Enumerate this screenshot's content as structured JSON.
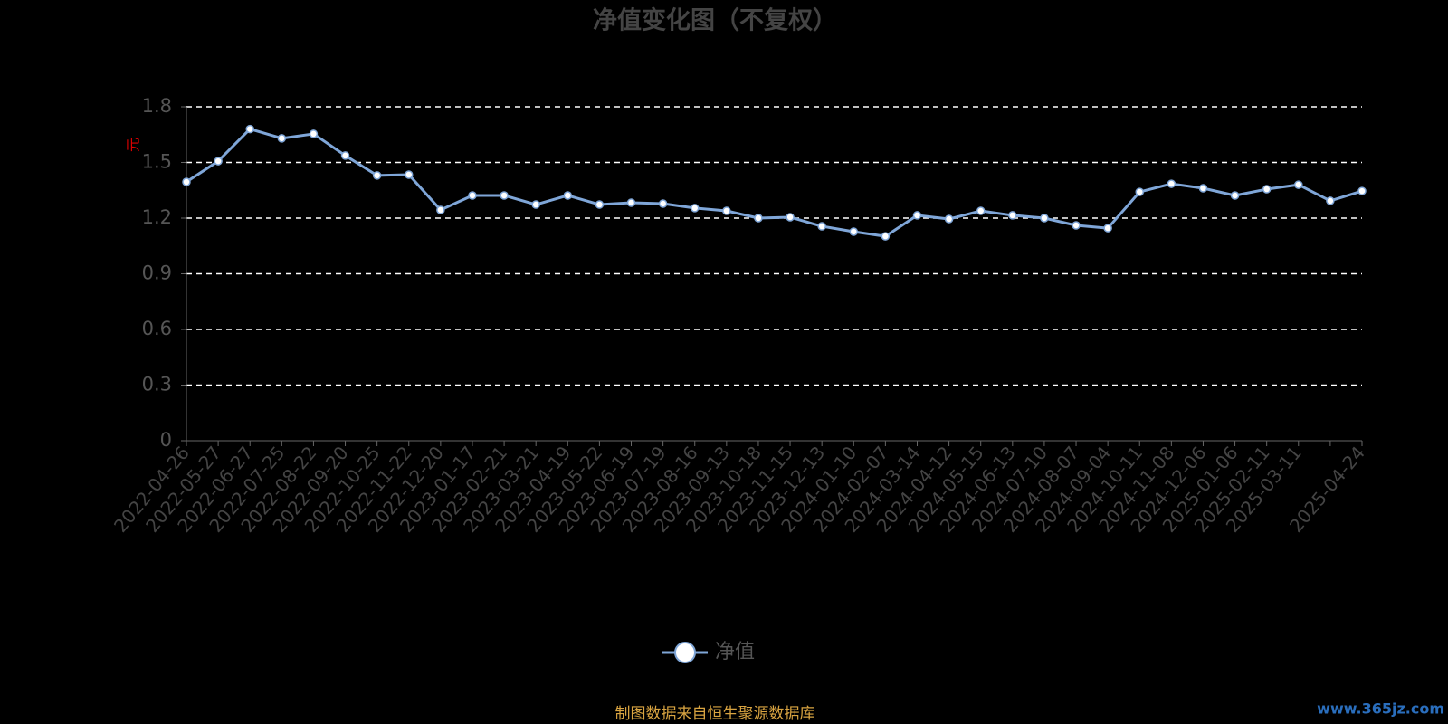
{
  "chart_data": {
    "type": "line",
    "title": "净值变化图（不复权）",
    "y_label": "元",
    "source": "制图数据来自恒生聚源数据库",
    "watermark": "www.365jz.com",
    "categories": [
      "2022-04-26",
      "2022-05-27",
      "2022-06-27",
      "2022-07-25",
      "2022-08-22",
      "2022-09-20",
      "2022-10-25",
      "2022-11-22",
      "2022-12-20",
      "2023-01-17",
      "2023-02-21",
      "2023-03-21",
      "2023-04-19",
      "2023-05-22",
      "2023-06-19",
      "2023-07-19",
      "2023-08-16",
      "2023-09-13",
      "2023-10-18",
      "2023-11-15",
      "2023-12-13",
      "2024-01-10",
      "2024-02-07",
      "2024-03-14",
      "2024-04-12",
      "2024-05-15",
      "2024-06-13",
      "2024-07-10",
      "2024-08-07",
      "2024-09-04",
      "2024-10-11",
      "2024-11-08",
      "2024-12-06",
      "2025-01-06",
      "2025-02-11",
      "2025-03-11",
      null,
      "2025-04-24"
    ],
    "series": [
      {
        "name": "净值",
        "color": "#7fa6d8",
        "values": [
          1.395,
          1.507,
          1.68,
          1.63,
          1.654,
          1.537,
          1.43,
          1.434,
          1.244,
          1.322,
          1.322,
          1.273,
          1.322,
          1.273,
          1.283,
          1.278,
          1.254,
          1.239,
          1.2,
          1.205,
          1.156,
          1.127,
          1.102,
          1.215,
          1.195,
          1.239,
          1.215,
          1.2,
          1.161,
          1.146,
          1.341,
          1.385,
          1.361,
          1.322,
          1.356,
          1.38,
          1.293,
          1.346
        ]
      }
    ],
    "ylim": [
      0,
      1.8
    ],
    "yticks": [
      0,
      0.3,
      0.6,
      0.9,
      1.2,
      1.5,
      1.8
    ],
    "grid": true
  }
}
